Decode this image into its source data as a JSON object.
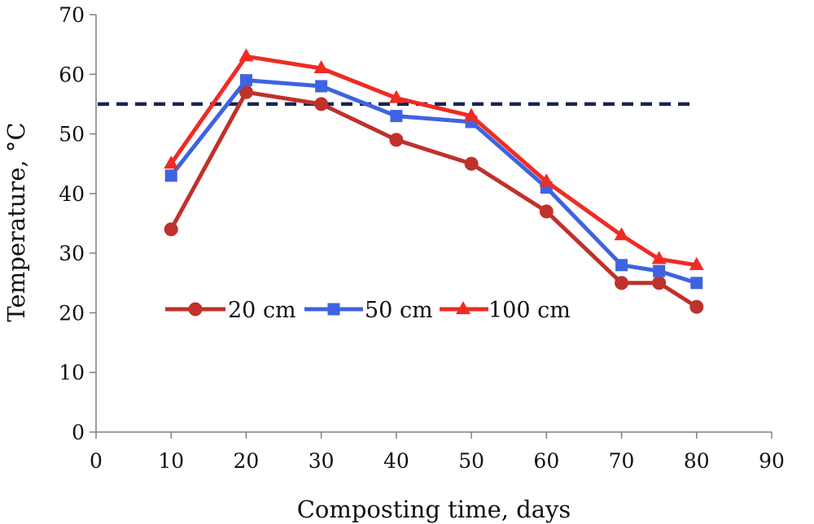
{
  "chart_data": {
    "type": "line",
    "title": "",
    "xlabel": "Composting time, days",
    "ylabel": "Temperature, °C",
    "xlim": [
      0,
      90
    ],
    "ylim": [
      0,
      70
    ],
    "xticks": [
      0,
      10,
      20,
      30,
      40,
      50,
      60,
      70,
      80,
      90
    ],
    "yticks": [
      0,
      10,
      20,
      30,
      40,
      50,
      60,
      70
    ],
    "grid": false,
    "legend_position": "inside-lower-left",
    "x": [
      10,
      20,
      30,
      40,
      50,
      60,
      70,
      75,
      80
    ],
    "series": [
      {
        "name": "20 cm",
        "marker": "circle",
        "color": "#C0312B",
        "values": [
          34,
          57,
          55,
          49,
          45,
          37,
          25,
          25,
          21
        ]
      },
      {
        "name": "50 cm",
        "marker": "square",
        "color": "#3F63E0",
        "values": [
          43,
          59,
          58,
          53,
          52,
          41,
          28,
          27,
          25
        ]
      },
      {
        "name": "100 cm",
        "marker": "triangle",
        "color": "#F02B24",
        "values": [
          45,
          63,
          61,
          56,
          53,
          42,
          33,
          29,
          28
        ]
      }
    ],
    "reference_line": {
      "y": 55,
      "x_range": [
        0,
        80
      ],
      "style": "dashed",
      "color": "#1A2450"
    }
  }
}
